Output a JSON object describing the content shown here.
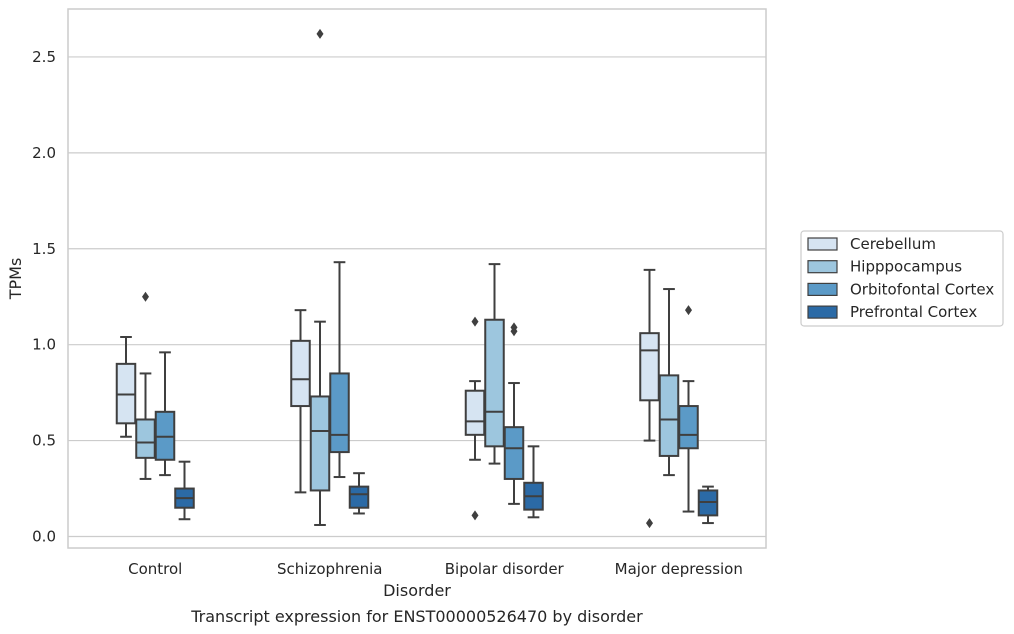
{
  "chart_data": {
    "type": "box",
    "caption": "Transcript expression for ENST00000526470 by disorder",
    "xlabel": "Disorder",
    "ylabel": "TPMs",
    "ylim": [
      -0.06,
      2.75
    ],
    "yticks": [
      0.0,
      0.5,
      1.0,
      1.5,
      2.0,
      2.5
    ],
    "ytick_labels": [
      "0.0",
      "0.5",
      "1.0",
      "1.5",
      "2.0",
      "2.5"
    ],
    "grid": "horizontal",
    "legend_position": "right",
    "categories": [
      "Control",
      "Schizophrenia",
      "Bipolar disorder",
      "Major depression"
    ],
    "series": [
      {
        "name": "Cerebellum",
        "color": "#d6e4f2",
        "boxes": [
          {
            "whisker_low": 0.52,
            "q1": 0.59,
            "median": 0.74,
            "q3": 0.9,
            "whisker_high": 1.04,
            "outliers": []
          },
          {
            "whisker_low": 0.23,
            "q1": 0.68,
            "median": 0.82,
            "q3": 1.02,
            "whisker_high": 1.18,
            "outliers": []
          },
          {
            "whisker_low": 0.4,
            "q1": 0.53,
            "median": 0.6,
            "q3": 0.76,
            "whisker_high": 0.81,
            "outliers": [
              0.11,
              1.12
            ]
          },
          {
            "whisker_low": 0.5,
            "q1": 0.71,
            "median": 0.97,
            "q3": 1.06,
            "whisker_high": 1.39,
            "outliers": [
              0.07
            ]
          }
        ]
      },
      {
        "name": "Hipppocampus",
        "color": "#9dc6de",
        "boxes": [
          {
            "whisker_low": 0.3,
            "q1": 0.41,
            "median": 0.49,
            "q3": 0.61,
            "whisker_high": 0.85,
            "outliers": [
              1.25
            ]
          },
          {
            "whisker_low": 0.06,
            "q1": 0.24,
            "median": 0.55,
            "q3": 0.73,
            "whisker_high": 1.12,
            "outliers": [
              2.62
            ]
          },
          {
            "whisker_low": 0.38,
            "q1": 0.47,
            "median": 0.65,
            "q3": 1.13,
            "whisker_high": 1.42,
            "outliers": []
          },
          {
            "whisker_low": 0.32,
            "q1": 0.42,
            "median": 0.61,
            "q3": 0.84,
            "whisker_high": 1.29,
            "outliers": []
          }
        ]
      },
      {
        "name": "Orbitofontal Cortex",
        "color": "#5b9ac7",
        "boxes": [
          {
            "whisker_low": 0.32,
            "q1": 0.4,
            "median": 0.52,
            "q3": 0.65,
            "whisker_high": 0.96,
            "outliers": []
          },
          {
            "whisker_low": 0.31,
            "q1": 0.44,
            "median": 0.53,
            "q3": 0.85,
            "whisker_high": 1.43,
            "outliers": []
          },
          {
            "whisker_low": 0.17,
            "q1": 0.3,
            "median": 0.46,
            "q3": 0.57,
            "whisker_high": 0.8,
            "outliers": [
              1.07,
              1.09
            ]
          },
          {
            "whisker_low": 0.13,
            "q1": 0.46,
            "median": 0.53,
            "q3": 0.68,
            "whisker_high": 0.81,
            "outliers": [
              1.18
            ]
          }
        ]
      },
      {
        "name": "Prefrontal Cortex",
        "color": "#2b6aa6",
        "boxes": [
          {
            "whisker_low": 0.09,
            "q1": 0.15,
            "median": 0.2,
            "q3": 0.25,
            "whisker_high": 0.39,
            "outliers": []
          },
          {
            "whisker_low": 0.12,
            "q1": 0.15,
            "median": 0.22,
            "q3": 0.26,
            "whisker_high": 0.33,
            "outliers": []
          },
          {
            "whisker_low": 0.1,
            "q1": 0.14,
            "median": 0.21,
            "q3": 0.28,
            "whisker_high": 0.47,
            "outliers": []
          },
          {
            "whisker_low": 0.07,
            "q1": 0.11,
            "median": 0.18,
            "q3": 0.24,
            "whisker_high": 0.26,
            "outliers": []
          }
        ]
      }
    ]
  }
}
